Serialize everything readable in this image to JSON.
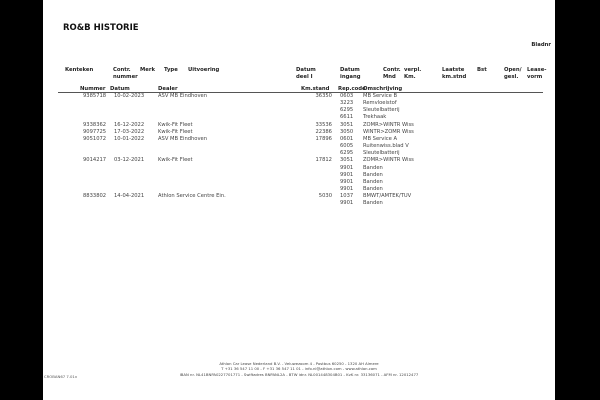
{
  "title": "RO&B HISTORIE",
  "bladnr_label": "Bladnr",
  "headers": {
    "kenteken": "Kenteken",
    "contr_nummer": "Contr.\nnummer",
    "merk": "Merk",
    "type": "Type",
    "uitvoering": "Uitvoering",
    "datum_deel": "Datum\ndeel I",
    "datum_ingang": "Datum\ningang",
    "contr_mnd": "Contr.\nMnd",
    "verpl_km": "verpl.\nKm.",
    "laatste_km": "Laatste\nkm.stnd",
    "bst": "Bst",
    "open_gesl": "Open/\ngesl.",
    "lease_vorm": "Lease-\nvorm"
  },
  "columns": {
    "nummer": "Nummer",
    "datum": "Datum",
    "dealer": "Dealer",
    "km_stand": "Km.stand",
    "rep_code": "Rep.code",
    "omschrijving": "Omschrijving"
  },
  "rows": [
    {
      "nummer": "9385718",
      "datum": "10-02-2023",
      "dealer": "ASV MB Eindhoven",
      "km": "36350",
      "code": "0603",
      "omschrijving": "MB Service B"
    },
    {
      "nummer": "",
      "datum": "",
      "dealer": "",
      "km": "",
      "code": "3223",
      "omschrijving": "Remvloeistof"
    },
    {
      "nummer": "",
      "datum": "",
      "dealer": "",
      "km": "",
      "code": "6295",
      "omschrijving": "Sleutelbatterij"
    },
    {
      "nummer": "",
      "datum": "",
      "dealer": "",
      "km": "",
      "code": "6611",
      "omschrijving": "Trekhaak"
    },
    {
      "nummer": "9338362",
      "datum": "16-12-2022",
      "dealer": "Kwik-Fit Fleet",
      "km": "33536",
      "code": "3051",
      "omschrijving": "ZOMR>WINTR Wiss"
    },
    {
      "nummer": "9097725",
      "datum": "17-03-2022",
      "dealer": "Kwik-Fit Fleet",
      "km": "22386",
      "code": "3050",
      "omschrijving": "WINTR>ZOMR Wiss"
    },
    {
      "nummer": "9051072",
      "datum": "10-01-2022",
      "dealer": "ASV MB Eindhoven",
      "km": "17896",
      "code": "0601",
      "omschrijving": "MB Service A"
    },
    {
      "nummer": "",
      "datum": "",
      "dealer": "",
      "km": "",
      "code": "6005",
      "omschrijving": "Ruitenwiss.blad V"
    },
    {
      "nummer": "",
      "datum": "",
      "dealer": "",
      "km": "",
      "code": "6295",
      "omschrijving": "Sleutelbatterij"
    },
    {
      "nummer": "9014217",
      "datum": "03-12-2021",
      "dealer": "Kwik-Fit Fleet",
      "km": "17812",
      "code": "3051",
      "omschrijving": "ZOMR>WINTR Wiss"
    },
    {
      "nummer": "",
      "datum": "",
      "dealer": "",
      "km": "",
      "code": "9901",
      "omschrijving": "Banden"
    },
    {
      "nummer": "",
      "datum": "",
      "dealer": "",
      "km": "",
      "code": "9901",
      "omschrijving": "Banden"
    },
    {
      "nummer": "",
      "datum": "",
      "dealer": "",
      "km": "",
      "code": "9901",
      "omschrijving": "Banden"
    },
    {
      "nummer": "",
      "datum": "",
      "dealer": "",
      "km": "",
      "code": "9901",
      "omschrijving": "Banden"
    },
    {
      "nummer": "8833802",
      "datum": "14-04-2021",
      "dealer": "Athlon Service Centre Ein.",
      "km": "5030",
      "code": "1037",
      "omschrijving": "BMWT/AMTEK/TUV"
    },
    {
      "nummer": "",
      "datum": "",
      "dealer": "",
      "km": "",
      "code": "9901",
      "omschrijving": "Banden"
    }
  ],
  "footer": {
    "line1": "Athlon Car Lease Nederland B.V. - Veluwezoom 4 - Postbus 60250 - 1320 AH  Almere",
    "line2": "T +31 36 547 11 00 - F +31 36 547 11 01 - info.nl@athlon.com - www.athlon.com",
    "line3": "IBAN nr. NL41BNPA0227701771 - Swiftadres BNPANL2A - BTW idnr. NL001448304B01 - KvK nr. 33136071 - AFM nr. 12012477",
    "form_code": "CROBAN67 7.01v"
  }
}
